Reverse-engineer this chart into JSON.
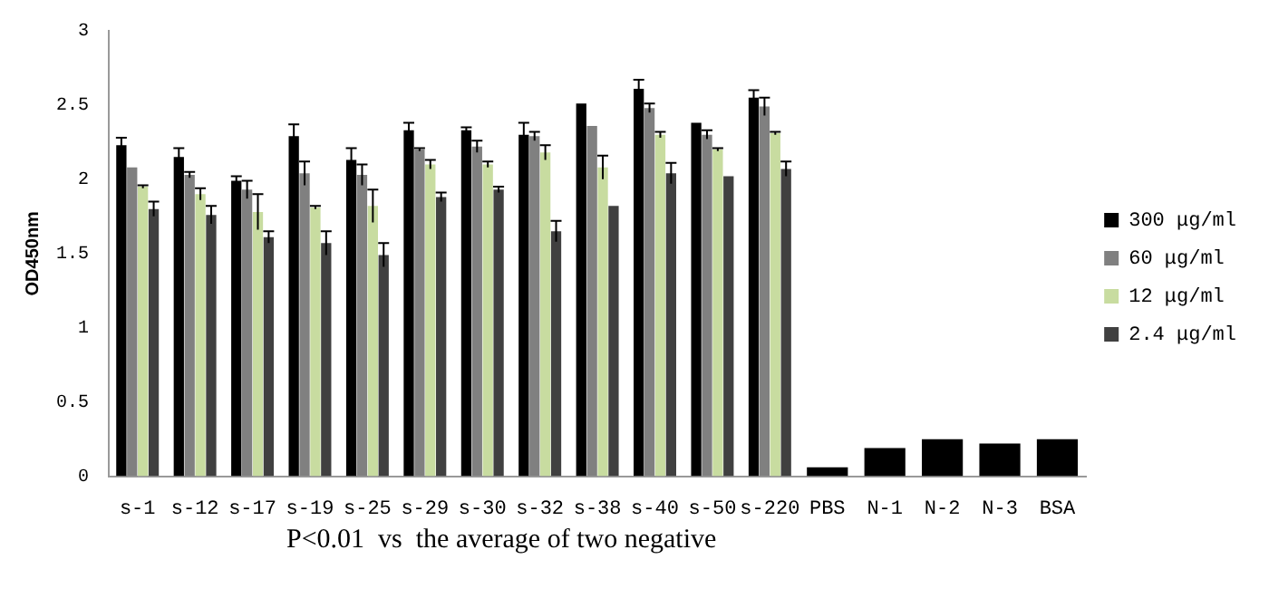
{
  "chart_data": {
    "type": "bar",
    "ylabel": "OD450nm",
    "categories": [
      "s-1",
      "s-12",
      "s-17",
      "s-19",
      "s-25",
      "s-29",
      "s-30",
      "s-32",
      "s-38",
      "s-40",
      "s-50",
      "s-220",
      "PBS",
      "N-1",
      "N-2",
      "N-3",
      "BSA"
    ],
    "series": [
      {
        "name": "300 μg/ml",
        "color": "#000000",
        "values": [
          2.23,
          2.15,
          1.99,
          2.29,
          2.13,
          2.33,
          2.33,
          2.3,
          2.51,
          2.61,
          2.38,
          2.55,
          0.06,
          0.19,
          0.25,
          0.22,
          0.25
        ],
        "errors": [
          0.05,
          0.06,
          0.03,
          0.08,
          0.08,
          0.05,
          0.02,
          0.08,
          null,
          0.06,
          null,
          0.05,
          null,
          null,
          null,
          null,
          null
        ]
      },
      {
        "name": "60 μg/ml",
        "color": "#808080",
        "values": [
          2.08,
          2.03,
          1.93,
          2.04,
          2.03,
          2.2,
          2.22,
          2.29,
          2.36,
          2.48,
          2.3,
          2.49,
          null,
          null,
          null,
          null,
          null
        ],
        "errors": [
          null,
          0.02,
          0.06,
          0.08,
          0.07,
          0.01,
          0.04,
          0.03,
          null,
          0.03,
          0.03,
          0.06,
          null,
          null,
          null,
          null,
          null
        ]
      },
      {
        "name": "12 μg/ml",
        "color": "#c8dca0",
        "values": [
          1.95,
          1.9,
          1.78,
          1.81,
          1.82,
          2.1,
          2.1,
          2.18,
          2.08,
          2.3,
          2.2,
          2.31,
          null,
          null,
          null,
          null,
          null
        ],
        "errors": [
          0.01,
          0.04,
          0.12,
          0.01,
          0.11,
          0.03,
          0.02,
          0.05,
          0.08,
          0.02,
          0.01,
          0.01,
          null,
          null,
          null,
          null,
          null
        ]
      },
      {
        "name": "2.4 μg/ml",
        "color": "#404040",
        "values": [
          1.8,
          1.76,
          1.61,
          1.57,
          1.49,
          1.88,
          1.93,
          1.65,
          1.82,
          2.04,
          2.02,
          2.07,
          null,
          null,
          null,
          null,
          null
        ],
        "errors": [
          0.05,
          0.06,
          0.04,
          0.08,
          0.08,
          0.03,
          0.02,
          0.07,
          null,
          0.07,
          null,
          0.05,
          null,
          null,
          null,
          null,
          null
        ]
      }
    ],
    "ylim": [
      0,
      3
    ],
    "yticks": [
      0,
      0.5,
      1,
      1.5,
      2,
      2.5,
      3
    ],
    "legend": "right",
    "annotations": [
      "P<0.01  vs  the average of two negative"
    ]
  }
}
